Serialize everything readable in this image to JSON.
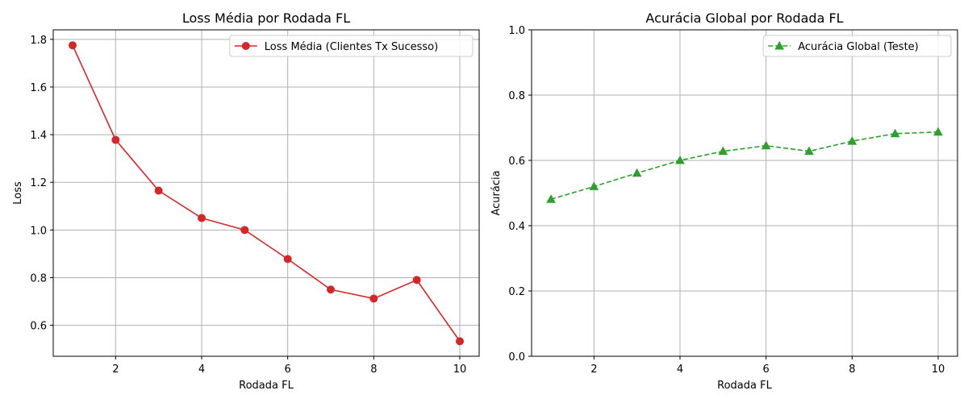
{
  "chart_data": [
    {
      "type": "line",
      "title": "Loss Média por Rodada FL",
      "xlabel": "Rodada FL",
      "ylabel": "Loss",
      "xlim": [
        0.55,
        10.45
      ],
      "ylim": [
        0.47,
        1.84
      ],
      "xticks": [
        "2",
        "4",
        "6",
        "8",
        "10"
      ],
      "yticks": [
        "0.6",
        "0.8",
        "1.0",
        "1.2",
        "1.4",
        "1.6",
        "1.8"
      ],
      "grid": true,
      "legend_position": "top-right",
      "series": [
        {
          "name": "Loss Média (Clientes Tx Sucesso)",
          "color": "#d62728",
          "marker": "circle",
          "linestyle": "solid",
          "x": [
            1,
            2,
            3,
            4,
            5,
            6,
            7,
            8,
            9,
            10
          ],
          "y": [
            1.775,
            1.378,
            1.165,
            1.05,
            1.0,
            0.878,
            0.75,
            0.712,
            0.79,
            0.533
          ]
        }
      ]
    },
    {
      "type": "line",
      "title": "Acurácia Global por Rodada FL",
      "xlabel": "Rodada FL",
      "ylabel": "Acurácia",
      "xlim": [
        0.55,
        10.45
      ],
      "ylim": [
        0.0,
        1.0
      ],
      "xticks": [
        "2",
        "4",
        "6",
        "8",
        "10"
      ],
      "yticks": [
        "0.0",
        "0.2",
        "0.4",
        "0.6",
        "0.8",
        "1.0"
      ],
      "grid": true,
      "legend_position": "top-right",
      "series": [
        {
          "name": "Acurácia Global (Teste)",
          "color": "#2ca02c",
          "marker": "triangle",
          "linestyle": "dashed",
          "x": [
            1,
            2,
            3,
            4,
            5,
            6,
            7,
            8,
            9,
            10
          ],
          "y": [
            0.481,
            0.52,
            0.561,
            0.6,
            0.628,
            0.645,
            0.628,
            0.659,
            0.682,
            0.687
          ]
        }
      ]
    }
  ]
}
